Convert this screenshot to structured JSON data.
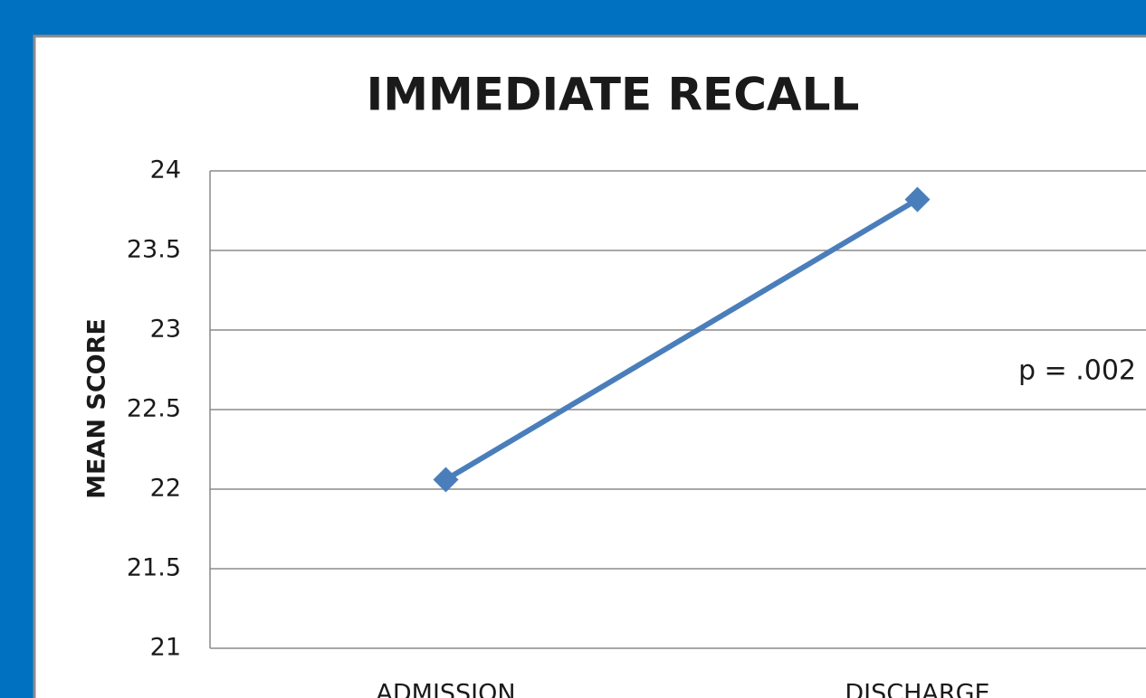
{
  "chart_data": {
    "type": "line",
    "title": "IMMEDIATE RECALL",
    "y_label": "MEAN SCORE",
    "annotation": "p = .002",
    "categories": [
      "ADMISSION",
      "DISCHARGE"
    ],
    "series": [
      {
        "name": "Immediate Recall",
        "color": "#4a7ebb",
        "values": [
          22.06,
          23.82
        ]
      }
    ],
    "ylim": [
      21,
      24
    ],
    "yticks": [
      21,
      21.5,
      22,
      22.5,
      23,
      23.5,
      24
    ],
    "grid": true,
    "legend": false
  }
}
